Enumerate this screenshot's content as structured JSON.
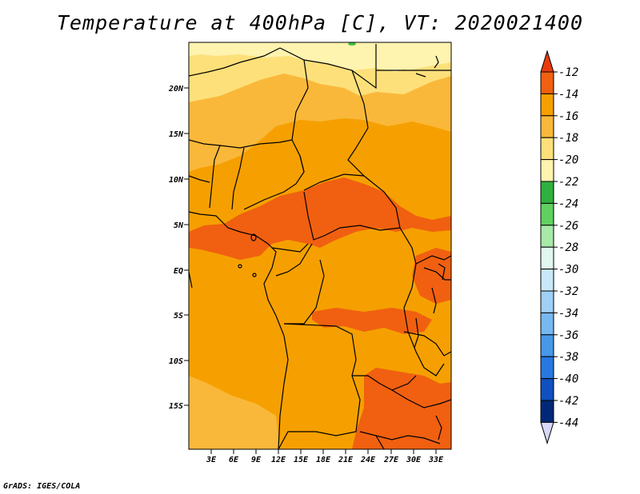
{
  "title": "Temperature at 400hPa [C], VT: 2020021400",
  "credit": "GrADS: IGES/COLA",
  "map": {
    "lat_labels": [
      "20N",
      "15N",
      "10N",
      "5N",
      "EQ",
      "5S",
      "10S",
      "15S"
    ],
    "lon_labels": [
      "3E",
      "6E",
      "9E",
      "12E",
      "15E",
      "18E",
      "21E",
      "24E",
      "27E",
      "30E",
      "33E"
    ],
    "fill_colors": {
      "minus_12_to_minus_14": "#f06010",
      "minus_14_to_minus_16": "#f5a000",
      "minus_16_to_minus_18": "#fab83a",
      "minus_18_to_minus_20": "#fde07a",
      "minus_20_to_minus_22": "#fff3b0",
      "minus_22_to_minus_24": "#40c040"
    }
  },
  "colorbar": {
    "labels": [
      "-12",
      "-14",
      "-16",
      "-18",
      "-20",
      "-22",
      "-24",
      "-26",
      "-28",
      "-30",
      "-32",
      "-34",
      "-36",
      "-38",
      "-40",
      "-42",
      "-44"
    ],
    "colors": [
      "#f06010",
      "#f5a000",
      "#fab83a",
      "#fde07a",
      "#fff3b0",
      "#30b040",
      "#60d060",
      "#a8e8a8",
      "#e0f8f0",
      "#c8e8fa",
      "#a0d0f5",
      "#78b8f0",
      "#4898e8",
      "#2878e0",
      "#1050c0",
      "#002878"
    ],
    "top_arrow_color": "#e83c0c",
    "bottom_arrow_color": "#d8d8f8"
  }
}
